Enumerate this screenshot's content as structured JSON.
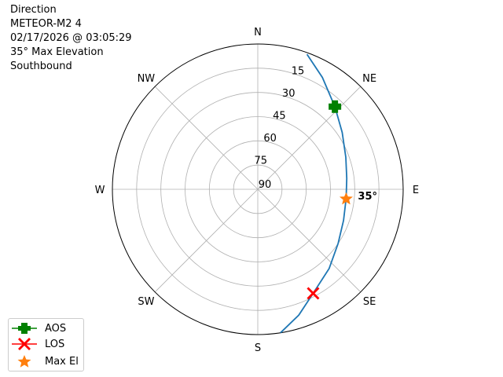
{
  "title_lines": [
    "Direction",
    "METEOR-M2 4",
    "02/17/2026 @ 03:05:29",
    "35° Max Elevation",
    "Southbound"
  ],
  "chart_data": {
    "type": "polar-line",
    "theta_direction": "clockwise",
    "theta_zero": "N",
    "direction_labels": [
      "N",
      "NE",
      "E",
      "SE",
      "S",
      "SW",
      "W",
      "NW"
    ],
    "radial_ticks": [
      "90",
      "75",
      "60",
      "45",
      "30",
      "15"
    ],
    "radial_axis": "elevation (90 at center, 0 at edge)",
    "grid": true,
    "track": {
      "azimuth_deg": [
        20,
        30,
        43,
        56,
        70,
        83,
        96,
        110,
        124,
        138,
        152,
        162,
        171
      ],
      "elevation_deg": [
        1,
        10,
        20,
        27,
        32,
        34.5,
        35,
        33.5,
        30,
        24,
        17,
        8,
        0
      ],
      "color": "#1f77b4"
    },
    "markers": [
      {
        "name": "AOS",
        "azimuth_deg": 43,
        "elevation_deg": 20,
        "color": "#008000",
        "shape": "plus"
      },
      {
        "name": "LOS",
        "azimuth_deg": 152,
        "elevation_deg": 17,
        "color": "#ff0000",
        "shape": "x"
      },
      {
        "name": "Max El",
        "azimuth_deg": 96,
        "elevation_deg": 35,
        "color": "#ff7f0e",
        "shape": "star"
      }
    ],
    "annotation": "35°",
    "legend_placement": "bottom-left"
  }
}
